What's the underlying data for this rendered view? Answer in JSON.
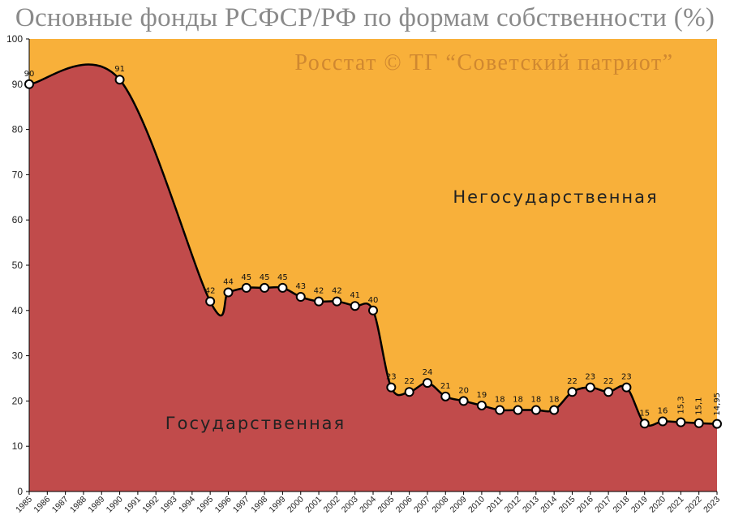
{
  "title": "Основные фонды РСФСР/РФ по формам собственности (%)",
  "watermark": "Росстат © ТГ “Советский патриот”",
  "colors": {
    "upper_area": "#f8b03a",
    "lower_area": "#c14b4b",
    "line": "#000000",
    "marker_fill": "#ffffff"
  },
  "chart_data": {
    "type": "area",
    "title": "Основные фонды РСФСР/РФ по формам собственности (%)",
    "xlabel": "",
    "ylabel": "",
    "ylim": [
      0,
      100
    ],
    "yticks": [
      0,
      10,
      20,
      30,
      40,
      50,
      60,
      70,
      80,
      90,
      100
    ],
    "grid": false,
    "legend": "none",
    "categories": [
      "1985",
      "1986",
      "1987",
      "1988",
      "1989",
      "1990",
      "1991",
      "1992",
      "1993",
      "1994",
      "1995",
      "1996",
      "1997",
      "1998",
      "1999",
      "2000",
      "2001",
      "2002",
      "2003",
      "2004",
      "2005",
      "2006",
      "2007",
      "2008",
      "2009",
      "2010",
      "2011",
      "2012",
      "2013",
      "2014",
      "2015",
      "2016",
      "2017",
      "2018",
      "2019",
      "2020",
      "2021",
      "2022",
      "2023"
    ],
    "series": [
      {
        "values": [
          90,
          null,
          null,
          null,
          null,
          91,
          null,
          null,
          null,
          null,
          42,
          44,
          45,
          45,
          45,
          43,
          42,
          42,
          41,
          40,
          23,
          22,
          24,
          21,
          20,
          19,
          18,
          18,
          18,
          18,
          22,
          23,
          22,
          23,
          15,
          15.5,
          15.3,
          15.1,
          14.95
        ],
        "labels": [
          "90",
          "",
          "",
          "",
          "",
          "91",
          "",
          "",
          "",
          "",
          "42",
          "44",
          "45",
          "45",
          "45",
          "43",
          "42",
          "42",
          "41",
          "40",
          "23",
          "22",
          "24",
          "21",
          "20",
          "19",
          "18",
          "18",
          "18",
          "18",
          "22",
          "23",
          "22",
          "23",
          "15",
          "16",
          "15,3",
          "15,1",
          "14,95"
        ]
      }
    ],
    "annotations": [
      {
        "text": "Негосударственная",
        "region": "upper"
      },
      {
        "text": "Государственная",
        "region": "lower"
      }
    ]
  }
}
